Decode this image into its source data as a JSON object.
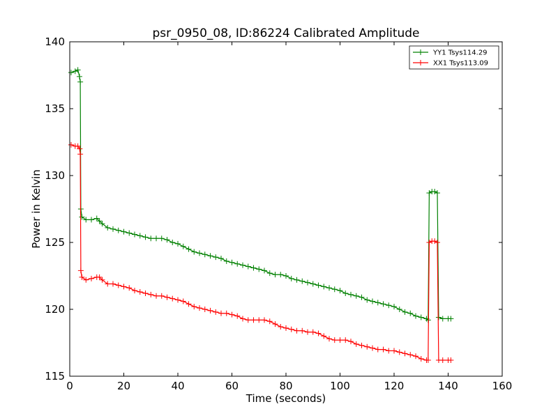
{
  "chart_data": {
    "type": "line",
    "title": "psr_0950_08, ID:86224 Calibrated Amplitude",
    "xlabel": "Time (seconds)",
    "ylabel": "Power in Kelvin",
    "xlim": [
      0,
      160
    ],
    "ylim": [
      115,
      140
    ],
    "xticks": [
      "0",
      "20",
      "40",
      "60",
      "80",
      "100",
      "120",
      "140",
      "160"
    ],
    "yticks": [
      "115",
      "120",
      "125",
      "130",
      "135",
      "140"
    ],
    "grid": false,
    "legend_position": "top-right",
    "marker": "plus",
    "series": [
      {
        "name": "YY1 Tsys114.29",
        "color": "#008000",
        "points": [
          [
            0.5,
            137.7
          ],
          [
            2,
            137.8
          ],
          [
            3,
            137.9
          ],
          [
            3.6,
            137.4
          ],
          [
            3.9,
            137.0
          ],
          [
            4.1,
            127.5
          ],
          [
            4.5,
            126.9
          ],
          [
            6,
            126.7
          ],
          [
            8,
            126.7
          ],
          [
            10,
            126.8
          ],
          [
            11,
            126.6
          ],
          [
            12,
            126.4
          ],
          [
            14,
            126.1
          ],
          [
            16,
            126.0
          ],
          [
            18,
            125.9
          ],
          [
            20,
            125.8
          ],
          [
            22,
            125.7
          ],
          [
            24,
            125.6
          ],
          [
            26,
            125.5
          ],
          [
            28,
            125.4
          ],
          [
            30,
            125.3
          ],
          [
            32,
            125.3
          ],
          [
            34,
            125.3
          ],
          [
            36,
            125.2
          ],
          [
            38,
            125.0
          ],
          [
            40,
            124.9
          ],
          [
            42,
            124.7
          ],
          [
            44,
            124.5
          ],
          [
            46,
            124.3
          ],
          [
            48,
            124.2
          ],
          [
            50,
            124.1
          ],
          [
            52,
            124.0
          ],
          [
            54,
            123.9
          ],
          [
            56,
            123.8
          ],
          [
            58,
            123.6
          ],
          [
            60,
            123.5
          ],
          [
            62,
            123.4
          ],
          [
            64,
            123.3
          ],
          [
            66,
            123.2
          ],
          [
            68,
            123.1
          ],
          [
            70,
            123.0
          ],
          [
            72,
            122.9
          ],
          [
            74,
            122.7
          ],
          [
            76,
            122.6
          ],
          [
            78,
            122.6
          ],
          [
            80,
            122.5
          ],
          [
            82,
            122.3
          ],
          [
            84,
            122.2
          ],
          [
            86,
            122.1
          ],
          [
            88,
            122.0
          ],
          [
            90,
            121.9
          ],
          [
            92,
            121.8
          ],
          [
            94,
            121.7
          ],
          [
            96,
            121.6
          ],
          [
            98,
            121.5
          ],
          [
            100,
            121.4
          ],
          [
            102,
            121.2
          ],
          [
            104,
            121.1
          ],
          [
            106,
            121.0
          ],
          [
            108,
            120.9
          ],
          [
            110,
            120.7
          ],
          [
            112,
            120.6
          ],
          [
            114,
            120.5
          ],
          [
            116,
            120.4
          ],
          [
            118,
            120.3
          ],
          [
            120,
            120.2
          ],
          [
            122,
            120.0
          ],
          [
            124,
            119.8
          ],
          [
            126,
            119.7
          ],
          [
            128,
            119.5
          ],
          [
            130,
            119.4
          ],
          [
            132,
            119.3
          ],
          [
            132.6,
            119.2
          ],
          [
            133.0,
            128.7
          ],
          [
            134,
            128.8
          ],
          [
            135,
            128.8
          ],
          [
            136,
            128.7
          ],
          [
            136.5,
            119.4
          ],
          [
            138,
            119.3
          ],
          [
            140,
            119.3
          ],
          [
            141,
            119.3
          ]
        ]
      },
      {
        "name": "XX1 Tsys113.09",
        "color": "#ff0000",
        "points": [
          [
            0.5,
            132.3
          ],
          [
            2,
            132.2
          ],
          [
            3,
            132.2
          ],
          [
            3.7,
            132.0
          ],
          [
            3.9,
            131.6
          ],
          [
            4.1,
            122.9
          ],
          [
            4.5,
            122.4
          ],
          [
            6,
            122.2
          ],
          [
            8,
            122.3
          ],
          [
            10,
            122.4
          ],
          [
            11,
            122.4
          ],
          [
            12,
            122.2
          ],
          [
            14,
            121.9
          ],
          [
            16,
            121.9
          ],
          [
            18,
            121.8
          ],
          [
            20,
            121.7
          ],
          [
            22,
            121.6
          ],
          [
            24,
            121.4
          ],
          [
            26,
            121.3
          ],
          [
            28,
            121.2
          ],
          [
            30,
            121.1
          ],
          [
            32,
            121.0
          ],
          [
            34,
            121.0
          ],
          [
            36,
            120.9
          ],
          [
            38,
            120.8
          ],
          [
            40,
            120.7
          ],
          [
            42,
            120.6
          ],
          [
            44,
            120.4
          ],
          [
            46,
            120.2
          ],
          [
            48,
            120.1
          ],
          [
            50,
            120.0
          ],
          [
            52,
            119.9
          ],
          [
            54,
            119.8
          ],
          [
            56,
            119.7
          ],
          [
            58,
            119.7
          ],
          [
            60,
            119.6
          ],
          [
            62,
            119.5
          ],
          [
            64,
            119.3
          ],
          [
            66,
            119.2
          ],
          [
            68,
            119.2
          ],
          [
            70,
            119.2
          ],
          [
            72,
            119.2
          ],
          [
            74,
            119.1
          ],
          [
            76,
            118.9
          ],
          [
            78,
            118.7
          ],
          [
            80,
            118.6
          ],
          [
            82,
            118.5
          ],
          [
            84,
            118.4
          ],
          [
            86,
            118.4
          ],
          [
            88,
            118.3
          ],
          [
            90,
            118.3
          ],
          [
            92,
            118.2
          ],
          [
            94,
            118.0
          ],
          [
            96,
            117.8
          ],
          [
            98,
            117.7
          ],
          [
            100,
            117.7
          ],
          [
            102,
            117.7
          ],
          [
            104,
            117.6
          ],
          [
            106,
            117.4
          ],
          [
            108,
            117.3
          ],
          [
            110,
            117.2
          ],
          [
            112,
            117.1
          ],
          [
            114,
            117.0
          ],
          [
            116,
            117.0
          ],
          [
            118,
            116.9
          ],
          [
            120,
            116.9
          ],
          [
            122,
            116.8
          ],
          [
            124,
            116.7
          ],
          [
            126,
            116.6
          ],
          [
            128,
            116.5
          ],
          [
            130,
            116.3
          ],
          [
            132,
            116.2
          ],
          [
            132.6,
            116.2
          ],
          [
            133.0,
            125.0
          ],
          [
            134,
            125.1
          ],
          [
            135,
            125.1
          ],
          [
            136,
            125.0
          ],
          [
            136.5,
            116.2
          ],
          [
            138,
            116.2
          ],
          [
            140,
            116.2
          ],
          [
            141,
            116.2
          ]
        ]
      }
    ]
  }
}
